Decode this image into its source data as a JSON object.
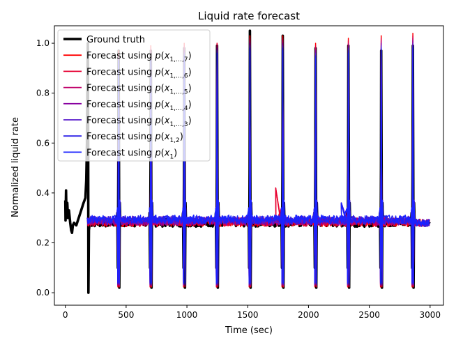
{
  "chart_data": {
    "type": "line",
    "title": "Liquid rate forecast",
    "xlabel": "Time (sec)",
    "ylabel": "Normalized liquid rate",
    "xlim": [
      -90,
      3110
    ],
    "ylim": [
      -0.05,
      1.07
    ],
    "xticks": [
      0,
      500,
      1000,
      1500,
      2000,
      2500,
      3000
    ],
    "yticks": [
      0.0,
      0.2,
      0.4,
      0.6,
      0.8,
      1.0
    ],
    "legend_position": "top-left",
    "series": [
      {
        "name": "Ground truth",
        "color": "#000000",
        "linewidth": "thick",
        "peaks": [
          1.0,
          0.97,
          0.97,
          0.98,
          0.99,
          1.05,
          1.03,
          0.98,
          0.99,
          0.97,
          0.99
        ],
        "start_x": 0
      },
      {
        "name": "Forecast using p(x_{1,...,7})",
        "sub": "1,…,7",
        "color": "#ff0000",
        "peaks": [
          0.97,
          0.99,
          1.0,
          1.0,
          1.03,
          1.03,
          1.0,
          1.02,
          1.03,
          1.04
        ],
        "start_x": 180
      },
      {
        "name": "Forecast using p(x_{1,...,6})",
        "sub": "1,…,6",
        "color": "#e60033",
        "peaks": [
          0.96,
          0.98,
          0.99,
          1.0,
          1.02,
          1.02,
          0.99,
          1.01,
          1.02,
          1.03
        ],
        "start_x": 180
      },
      {
        "name": "Forecast using p(x_{1,...,5})",
        "sub": "1,…,5",
        "color": "#c0006a",
        "peaks": [
          0.95,
          0.97,
          0.98,
          0.99,
          1.01,
          1.01,
          0.98,
          1.0,
          1.01,
          1.02
        ],
        "start_x": 180
      },
      {
        "name": "Forecast using p(x_{1,...,4})",
        "sub": "1,…,4",
        "color": "#8800a0",
        "peaks": [
          0.94,
          0.96,
          0.97,
          0.98,
          1.0,
          1.0,
          0.97,
          0.99,
          1.0,
          1.01
        ],
        "start_x": 180
      },
      {
        "name": "Forecast using p(x_{1,...,3})",
        "sub": "1,…,3",
        "color": "#5a1ccc",
        "peaks": [
          0.94,
          0.95,
          0.96,
          0.97,
          0.99,
          0.99,
          0.96,
          0.98,
          0.99,
          1.0
        ],
        "start_x": 180
      },
      {
        "name": "Forecast using p(x_{1,2})",
        "sub": "1,2",
        "color": "#2a1ee6",
        "peaks": [
          0.93,
          0.94,
          0.95,
          0.96,
          0.98,
          0.98,
          0.95,
          0.97,
          0.98,
          0.99
        ],
        "start_x": 180
      },
      {
        "name": "Forecast using p(x_1)",
        "sub": "1",
        "color": "#1a22ff",
        "peaks": [
          0.93,
          0.94,
          0.95,
          0.96,
          0.97,
          0.97,
          0.94,
          0.96,
          0.97,
          0.98
        ],
        "start_x": 180
      }
    ],
    "spike_times": [
      440,
      705,
      980,
      1250,
      1520,
      1790,
      2060,
      2330,
      2600,
      2860
    ],
    "baseline": 0.28
  },
  "legend": {
    "prefix_forecast": "Forecast using ",
    "p_open": "p(",
    "x_var": "x",
    "p_close": ")"
  }
}
